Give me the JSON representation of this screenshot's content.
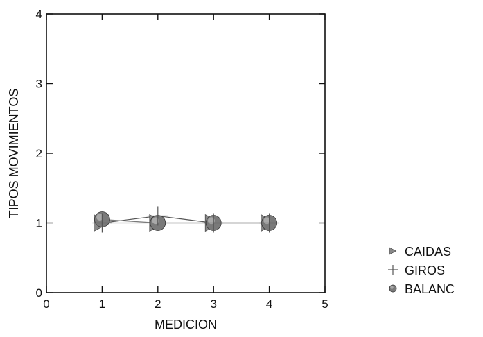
{
  "chart_data": {
    "type": "line",
    "xlabel": "MEDICION",
    "ylabel": "TIPOS MOVIMIENTOS",
    "xlim": [
      0,
      5
    ],
    "ylim": [
      0,
      4
    ],
    "xticks": [
      "0",
      "1",
      "2",
      "3",
      "4",
      "5"
    ],
    "yticks": [
      "0",
      "1",
      "2",
      "3",
      "4"
    ],
    "grid": false,
    "legend_position": "bottom-right outside",
    "x": [
      1,
      2,
      3,
      4
    ],
    "series": [
      {
        "name": "CAIDAS",
        "values": [
          1.0,
          1.0,
          1.0,
          1.0
        ],
        "marker": "triangle",
        "color": "#888888"
      },
      {
        "name": "GIROS",
        "values": [
          1.0,
          1.1,
          1.0,
          1.0
        ],
        "marker": "plus",
        "color": "#555555"
      },
      {
        "name": "BALANC",
        "values": [
          1.05,
          1.0,
          1.0,
          1.0
        ],
        "marker": "circle",
        "color": "#7a7a7a"
      }
    ]
  }
}
